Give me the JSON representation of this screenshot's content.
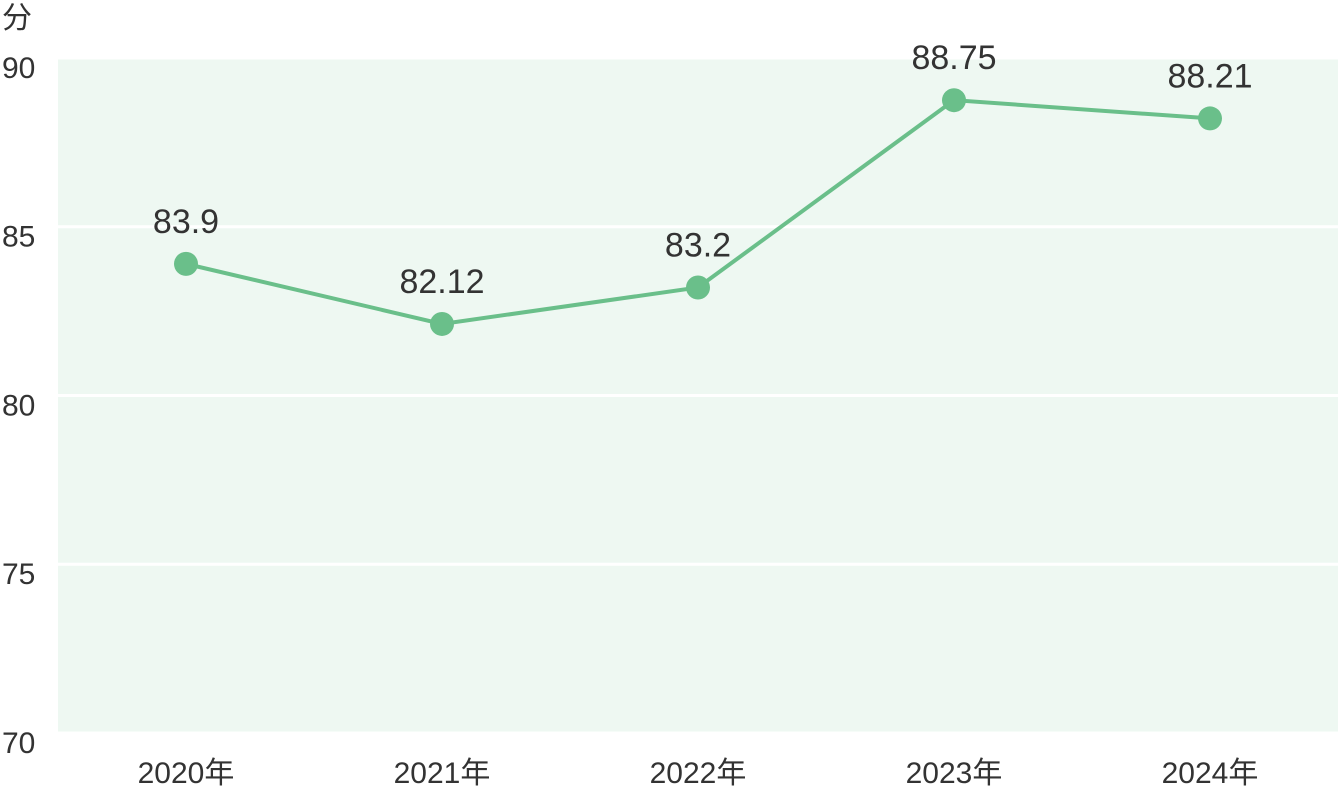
{
  "chart_data": {
    "type": "line",
    "y_unit": "分",
    "categories": [
      "2020年",
      "2021年",
      "2022年",
      "2023年",
      "2024年"
    ],
    "values": [
      83.9,
      82.12,
      83.2,
      88.75,
      88.21
    ],
    "color": "#6abf8a",
    "ylim": [
      70,
      90
    ],
    "yticks": [
      70,
      75,
      80,
      85,
      90
    ],
    "grid": true
  }
}
